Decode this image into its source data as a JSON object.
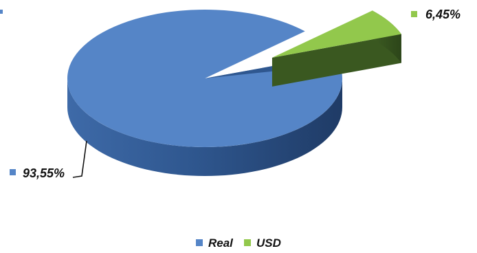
{
  "chart_data": {
    "type": "pie",
    "categories": [
      "Real",
      "USD"
    ],
    "values": [
      93.55,
      6.45
    ],
    "data_labels": [
      "93,55%",
      "6,45%"
    ],
    "colors": [
      "#5585C7",
      "#92C84C"
    ],
    "legend_placement": "bottom",
    "three_d": true
  },
  "legend": {
    "items": [
      {
        "label": "Real",
        "color": "#5585C7"
      },
      {
        "label": "USD",
        "color": "#92C84C"
      }
    ]
  }
}
